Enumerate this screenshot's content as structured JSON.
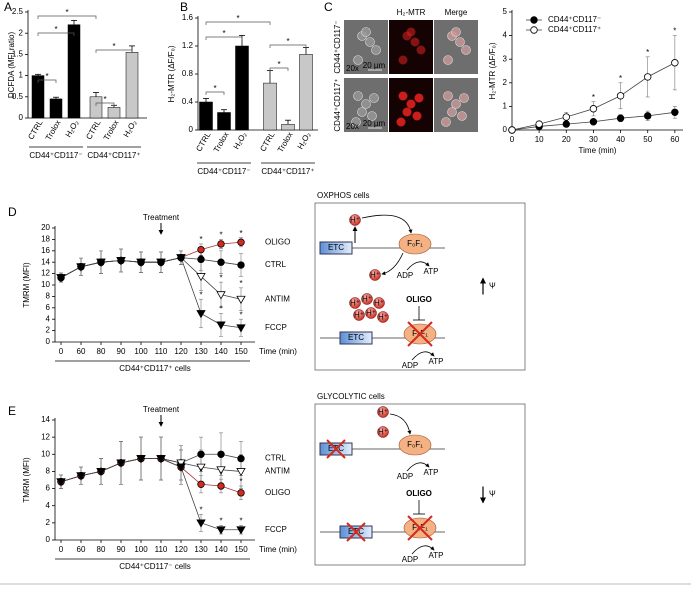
{
  "chart_data": [
    {
      "label": "A",
      "type": "bar",
      "y_label": "DCFDA (MFI ratio)",
      "categories": [
        "CTRL",
        "Trolox",
        "H₂O₂"
      ],
      "series": [
        {
          "name": "CD44⁺CD117⁻",
          "color": "#000000",
          "values": [
            1.0,
            0.45,
            2.2
          ],
          "errors": [
            0.03,
            0.04,
            0.1
          ]
        },
        {
          "name": "CD44⁺CD117⁺",
          "color": "#c8c8c8",
          "values": [
            0.5,
            0.25,
            1.55
          ],
          "errors": [
            0.1,
            0.05,
            0.15
          ]
        }
      ],
      "ylim": [
        0,
        2.5
      ],
      "yticks": [
        0,
        0.5,
        1,
        1.5,
        2,
        2.5
      ],
      "comparisons": [
        "*",
        "*",
        "*",
        "*",
        "*"
      ]
    },
    {
      "label": "B",
      "type": "bar",
      "y_label": "H₂-MTR (ΔF/F₀)",
      "categories": [
        "CTRL",
        "Trolox",
        "H₂O₂"
      ],
      "series": [
        {
          "name": "CD44⁺CD117⁻",
          "color": "#000000",
          "values": [
            0.4,
            0.25,
            1.2
          ],
          "errors": [
            0.05,
            0.04,
            0.15
          ]
        },
        {
          "name": "CD44⁺CD117⁺",
          "color": "#c8c8c8",
          "values": [
            0.67,
            0.08,
            1.08
          ],
          "errors": [
            0.18,
            0.06,
            0.1
          ]
        }
      ],
      "ylim": [
        0,
        1.6
      ],
      "yticks": [
        0,
        0.4,
        0.8,
        1.2,
        1.6
      ],
      "comparisons": [
        "*",
        "*",
        "*",
        "*",
        "*"
      ]
    },
    {
      "type": "line",
      "x": [
        0,
        10,
        20,
        30,
        40,
        50,
        60
      ],
      "xlim": [
        0,
        63
      ],
      "xticks": [
        0,
        10,
        20,
        30,
        40,
        50,
        60
      ],
      "x_label": "Time (min)",
      "y_label": "H₂-MTR (ΔF/F₀)",
      "ylim": [
        0,
        5
      ],
      "yticks": [
        0,
        1,
        2,
        3,
        4,
        5
      ],
      "legend": "upper left",
      "series": [
        {
          "name": "CD44⁺CD117⁻",
          "color": "#000000",
          "marker": "circle",
          "values": [
            0,
            0.15,
            0.25,
            0.35,
            0.5,
            0.6,
            0.75
          ],
          "errors": [
            0,
            0.05,
            0.08,
            0.1,
            0.15,
            0.2,
            0.25
          ]
        },
        {
          "name": "CD44⁺CD117⁺",
          "color": "#ffffff",
          "marker": "circle",
          "values": [
            0,
            0.25,
            0.55,
            0.9,
            1.45,
            2.25,
            2.85
          ],
          "errors": [
            0,
            0.1,
            0.2,
            0.3,
            0.55,
            0.85,
            1.15
          ],
          "asterisks": [
            null,
            null,
            null,
            "*",
            "*",
            "*",
            "*"
          ]
        }
      ]
    },
    {
      "label": "D",
      "type": "line",
      "categories": [
        "0",
        "60",
        "80",
        "90",
        "100",
        "110",
        "120",
        "130",
        "140",
        "150"
      ],
      "x_label": "Time (min)",
      "subtitle": "CD44⁺CD117⁺ cells",
      "y_label": "TMRM (MFI)",
      "ylim": [
        0,
        20
      ],
      "yticks": [
        0,
        2,
        4,
        6,
        8,
        10,
        12,
        14,
        16,
        18,
        20
      ],
      "annotation": {
        "text": "Treatment",
        "category": "110"
      },
      "series": [
        {
          "name": "OLIGO",
          "color": "#d42a1e",
          "marker": "circle",
          "values": [
            11.3,
            13.2,
            14,
            14.3,
            14,
            14,
            14.8,
            16.2,
            17.2,
            17.5
          ],
          "errors": [
            0.8,
            1.5,
            2,
            2,
            1.8,
            1.8,
            1.2,
            1,
            0.8,
            0.8
          ],
          "asterisks": [
            null,
            null,
            null,
            null,
            null,
            null,
            null,
            "*",
            "*",
            "*"
          ]
        },
        {
          "name": "CTRL",
          "color": "#000000",
          "marker": "circle",
          "values": [
            11.3,
            13.2,
            14,
            14.3,
            14,
            14,
            14.8,
            14.5,
            14,
            13.5
          ],
          "errors": [
            0.8,
            1.5,
            2,
            2,
            1.8,
            1.8,
            1.2,
            2,
            2,
            2
          ]
        },
        {
          "name": "ANTIM",
          "color": "#ffffff",
          "marker": "triangle",
          "values": [
            11.3,
            13.2,
            14,
            14.3,
            14,
            14,
            14.8,
            11.5,
            8.3,
            7.5
          ],
          "errors": [
            0.8,
            1.5,
            2,
            2,
            1.8,
            1.8,
            1.2,
            2.5,
            2.2,
            2
          ],
          "asterisks": [
            null,
            null,
            null,
            null,
            null,
            null,
            null,
            "*",
            "*",
            "*"
          ]
        },
        {
          "name": "FCCP",
          "color": "#000000",
          "marker": "triangle",
          "values": [
            11.3,
            13.2,
            14,
            14.3,
            14,
            14,
            14.8,
            5,
            3,
            2.5
          ],
          "errors": [
            0.8,
            1.5,
            2,
            2,
            1.8,
            1.8,
            1.2,
            2.5,
            2,
            1.5
          ],
          "asterisks": [
            null,
            null,
            null,
            null,
            null,
            null,
            null,
            "*",
            "*",
            "*"
          ]
        }
      ]
    },
    {
      "label": "E",
      "type": "line",
      "categories": [
        "0",
        "60",
        "80",
        "90",
        "100",
        "110",
        "120",
        "130",
        "140",
        "150"
      ],
      "x_label": "Time (min)",
      "subtitle": "CD44⁺CD117⁻ cells",
      "y_label": "TMRM (MFI)",
      "ylim": [
        0,
        14
      ],
      "yticks": [
        0,
        2,
        4,
        6,
        8,
        10,
        12,
        14
      ],
      "annotation": {
        "text": "Treatment",
        "category": "110"
      },
      "series": [
        {
          "name": "CTRL",
          "color": "#000000",
          "marker": "circle",
          "values": [
            6.8,
            7.5,
            8,
            9,
            9.5,
            9.5,
            9,
            10,
            10,
            9.5
          ],
          "errors": [
            0.8,
            1,
            1.5,
            2.5,
            2.5,
            2.5,
            2,
            2,
            2.5,
            2
          ]
        },
        {
          "name": "ANTIM",
          "color": "#ffffff",
          "marker": "triangle",
          "values": [
            6.8,
            7.5,
            8,
            9,
            9.5,
            9.5,
            9,
            8.5,
            8.2,
            8
          ],
          "errors": [
            0.8,
            1,
            1.5,
            2.5,
            2.5,
            2.5,
            2,
            2,
            2,
            2
          ]
        },
        {
          "name": "OLIGO",
          "color": "#d42a1e",
          "marker": "circle",
          "values": [
            6.8,
            7.5,
            8,
            9,
            9.5,
            9.5,
            8.5,
            6.5,
            6.3,
            5.5
          ],
          "errors": [
            0.8,
            1,
            1.5,
            2.5,
            2.5,
            2.5,
            2,
            1,
            0.8,
            0.8
          ],
          "asterisks": [
            null,
            null,
            null,
            null,
            null,
            null,
            null,
            "*",
            "*",
            "*"
          ]
        },
        {
          "name": "FCCP",
          "color": "#000000",
          "marker": "triangle",
          "values": [
            6.8,
            7.5,
            8,
            9,
            9.5,
            9.5,
            8.5,
            2,
            1.2,
            1.2
          ],
          "errors": [
            0.8,
            1,
            1.5,
            2.5,
            2.5,
            2.5,
            2,
            1,
            0.5,
            0.5
          ],
          "asterisks": [
            null,
            null,
            null,
            null,
            null,
            null,
            null,
            "*",
            "*",
            "*"
          ]
        }
      ]
    }
  ],
  "micrographs": {
    "label": "C",
    "columns": [
      "H₂-MTR",
      "Merge"
    ],
    "rows": [
      "CD44⁺CD117⁻",
      "CD44⁺CD117⁺"
    ],
    "magnification": "20x",
    "scale_bar": "20 µm"
  },
  "diagrams": [
    {
      "title": "OXPHOS cells",
      "etc": "ETC",
      "atpase": "F₀F₁",
      "adp": "ADP",
      "atp": "ATP",
      "proton": "H⁺",
      "inhibitor": "OLIGO",
      "potential": "Ψ"
    },
    {
      "title": "GLYCOLYTIC cells",
      "etc": "ETC",
      "atpase": "F₀F₁",
      "adp": "ADP",
      "atp": "ATP",
      "proton": "H⁺",
      "inhibitor": "OLIGO",
      "potential": "Ψ"
    }
  ]
}
